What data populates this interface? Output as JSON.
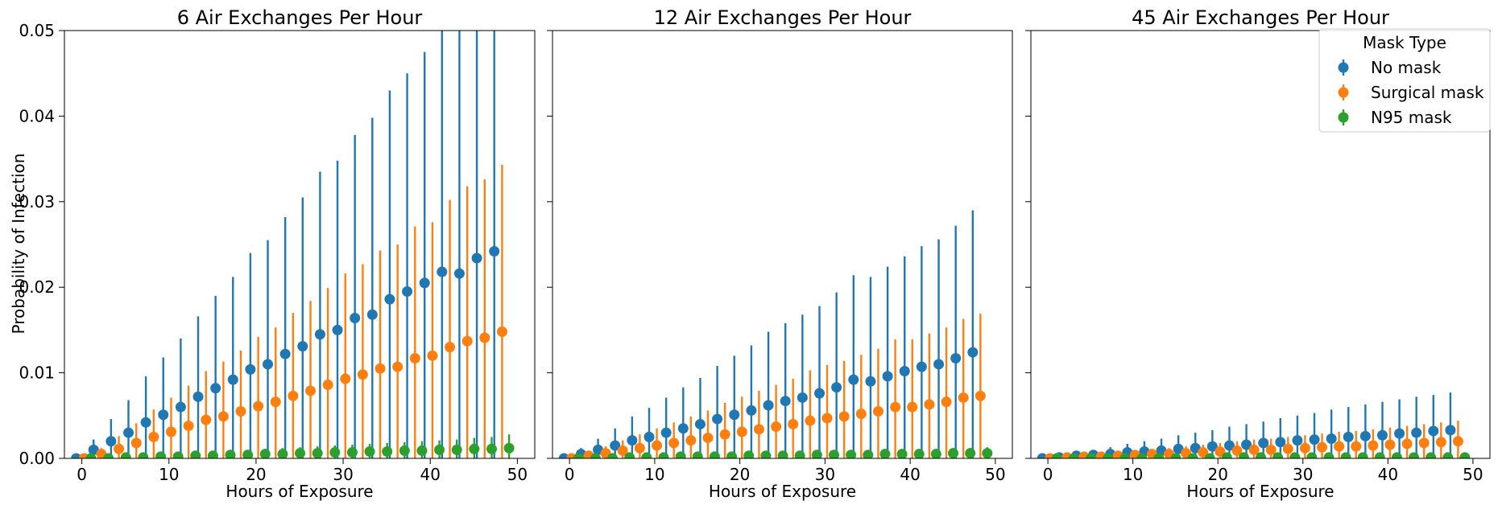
{
  "figure": {
    "ylabel": "Probability of Infection",
    "legend_title": "Mask Type"
  },
  "colors": {
    "No mask": "#1f77b4",
    "Surgical mask": "#ff7f0e",
    "N95 mask": "#2ca02c"
  },
  "chart_data": [
    {
      "type": "scatter",
      "title": "6 Air Exchanges Per Hour",
      "xlabel": "Hours of Exposure",
      "ylabel": "Probability of Infection",
      "xlim": [
        -2,
        52
      ],
      "ylim": [
        0,
        0.05
      ],
      "xticks": [
        "0",
        "10",
        "20",
        "30",
        "40",
        "50"
      ],
      "yticks": [
        "0.00",
        "0.01",
        "0.02",
        "0.03",
        "0.04",
        "0.05"
      ],
      "hours": [
        0,
        2,
        4,
        6,
        8,
        10,
        12,
        14,
        16,
        18,
        20,
        22,
        24,
        26,
        28,
        30,
        32,
        34,
        36,
        38,
        40,
        42,
        44,
        46,
        48
      ],
      "series": [
        {
          "name": "No mask",
          "offset": -0.65,
          "values": [
            0,
            0.001,
            0.002,
            0.003,
            0.0042,
            0.0051,
            0.006,
            0.0072,
            0.0082,
            0.0092,
            0.0104,
            0.011,
            0.0122,
            0.0131,
            0.0145,
            0.015,
            0.0164,
            0.0168,
            0.0186,
            0.0195,
            0.0205,
            0.0218,
            0.0216,
            0.0234,
            0.0242
          ],
          "upper": [
            0,
            0.0022,
            0.0046,
            0.0068,
            0.0096,
            0.0118,
            0.014,
            0.0166,
            0.019,
            0.0212,
            0.024,
            0.0255,
            0.0282,
            0.0305,
            0.0335,
            0.0348,
            0.0378,
            0.0398,
            0.043,
            0.045,
            0.0475,
            0.05,
            0.05,
            0.05,
            0.05
          ]
        },
        {
          "name": "Surgical mask",
          "offset": 0.25,
          "values": [
            0,
            0.0005,
            0.0011,
            0.0018,
            0.0025,
            0.0031,
            0.0038,
            0.0045,
            0.0049,
            0.0055,
            0.0061,
            0.0066,
            0.0073,
            0.0079,
            0.0086,
            0.0093,
            0.0098,
            0.0105,
            0.0107,
            0.0117,
            0.012,
            0.013,
            0.0137,
            0.0141,
            0.0148
          ],
          "upper": [
            0,
            0.0012,
            0.0026,
            0.0041,
            0.0057,
            0.0071,
            0.0085,
            0.0102,
            0.0113,
            0.0126,
            0.0142,
            0.0153,
            0.017,
            0.0184,
            0.0199,
            0.0216,
            0.0227,
            0.0243,
            0.025,
            0.0271,
            0.0276,
            0.0302,
            0.0318,
            0.0326,
            0.0343
          ]
        },
        {
          "name": "N95 mask",
          "offset": 1.05,
          "values": [
            0,
            0,
            0.0001,
            0.0001,
            0.0002,
            0.0002,
            0.0003,
            0.0003,
            0.0004,
            0.0004,
            0.0005,
            0.0005,
            0.0006,
            0.0006,
            0.0007,
            0.0007,
            0.0008,
            0.0008,
            0.0009,
            0.0009,
            0.001,
            0.001,
            0.0011,
            0.0011,
            0.0012
          ],
          "upper": [
            0,
            0.0001,
            0.0002,
            0.0003,
            0.0004,
            0.0005,
            0.0006,
            0.0007,
            0.0008,
            0.0009,
            0.0011,
            0.0012,
            0.0013,
            0.0014,
            0.0015,
            0.0016,
            0.0017,
            0.0018,
            0.0019,
            0.002,
            0.0021,
            0.0022,
            0.0024,
            0.0025,
            0.0028
          ]
        }
      ]
    },
    {
      "type": "scatter",
      "title": "12 Air Exchanges Per Hour",
      "xlabel": "Hours of Exposure",
      "xlim": [
        -2,
        52
      ],
      "ylim": [
        0,
        0.05
      ],
      "xticks": [
        "0",
        "10",
        "20",
        "30",
        "40",
        "50"
      ],
      "hours": [
        0,
        2,
        4,
        6,
        8,
        10,
        12,
        14,
        16,
        18,
        20,
        22,
        24,
        26,
        28,
        30,
        32,
        34,
        36,
        38,
        40,
        42,
        44,
        46,
        48
      ],
      "series": [
        {
          "name": "No mask",
          "offset": -0.65,
          "values": [
            0,
            0.0005,
            0.001,
            0.0015,
            0.0021,
            0.0025,
            0.003,
            0.0035,
            0.004,
            0.0046,
            0.0051,
            0.0056,
            0.0062,
            0.0067,
            0.0071,
            0.0076,
            0.0083,
            0.0092,
            0.009,
            0.0096,
            0.0102,
            0.0107,
            0.011,
            0.0117,
            0.0124
          ],
          "upper": [
            0,
            0.0012,
            0.0023,
            0.0035,
            0.0049,
            0.0059,
            0.0071,
            0.0083,
            0.0094,
            0.0108,
            0.012,
            0.0132,
            0.0148,
            0.0158,
            0.0168,
            0.0178,
            0.0194,
            0.0214,
            0.0212,
            0.0224,
            0.0236,
            0.0248,
            0.0256,
            0.0272,
            0.029
          ]
        },
        {
          "name": "Surgical mask",
          "offset": 0.25,
          "values": [
            0,
            0.0003,
            0.0006,
            0.0009,
            0.0012,
            0.0015,
            0.0018,
            0.0021,
            0.0024,
            0.0028,
            0.0031,
            0.0034,
            0.0037,
            0.004,
            0.0044,
            0.0047,
            0.0049,
            0.0052,
            0.0055,
            0.006,
            0.006,
            0.0063,
            0.0066,
            0.0071,
            0.0073
          ],
          "upper": [
            0,
            0.0007,
            0.0014,
            0.0021,
            0.0028,
            0.0035,
            0.0042,
            0.0049,
            0.0056,
            0.0065,
            0.0072,
            0.0079,
            0.0086,
            0.0093,
            0.0103,
            0.0109,
            0.0114,
            0.0121,
            0.0128,
            0.0139,
            0.0139,
            0.0146,
            0.0153,
            0.0163,
            0.0169
          ]
        },
        {
          "name": "N95 mask",
          "offset": 1.05,
          "values": [
            0,
            0,
            0,
            0.0001,
            0.0001,
            0.0001,
            0.0002,
            0.0002,
            0.0002,
            0.0002,
            0.0003,
            0.0003,
            0.0003,
            0.0003,
            0.0004,
            0.0004,
            0.0004,
            0.0004,
            0.0005,
            0.0005,
            0.0005,
            0.0005,
            0.0006,
            0.0006,
            0.0006
          ],
          "upper": [
            0,
            0.0001,
            0.0001,
            0.0002,
            0.0002,
            0.0003,
            0.0004,
            0.0004,
            0.0005,
            0.0005,
            0.0006,
            0.0006,
            0.0007,
            0.0007,
            0.0008,
            0.0008,
            0.0009,
            0.0009,
            0.001,
            0.001,
            0.0011,
            0.0011,
            0.0012,
            0.0012,
            0.0013
          ]
        }
      ]
    },
    {
      "type": "scatter",
      "title": "45 Air Exchanges Per Hour",
      "xlabel": "Hours of Exposure",
      "xlim": [
        -2,
        52
      ],
      "ylim": [
        0,
        0.05
      ],
      "xticks": [
        "0",
        "10",
        "20",
        "30",
        "40",
        "50"
      ],
      "legend": {
        "title": "Mask Type",
        "loc": "upper right",
        "entries": [
          "No mask",
          "Surgical mask",
          "N95 mask"
        ]
      },
      "hours": [
        0,
        2,
        4,
        6,
        8,
        10,
        12,
        14,
        16,
        18,
        20,
        22,
        24,
        26,
        28,
        30,
        32,
        34,
        36,
        38,
        40,
        42,
        44,
        46,
        48
      ],
      "series": [
        {
          "name": "No mask",
          "offset": -0.65,
          "values": [
            0,
            0.0001,
            0.0003,
            0.0004,
            0.0005,
            0.0007,
            0.0008,
            0.0009,
            0.0011,
            0.0012,
            0.0014,
            0.0015,
            0.0016,
            0.0018,
            0.0019,
            0.0021,
            0.0022,
            0.0023,
            0.0025,
            0.0026,
            0.0027,
            0.0029,
            0.003,
            0.0032,
            0.0033
          ],
          "upper": [
            0,
            0.0003,
            0.0007,
            0.001,
            0.0013,
            0.0017,
            0.002,
            0.0023,
            0.0027,
            0.003,
            0.0033,
            0.0037,
            0.004,
            0.0043,
            0.0047,
            0.005,
            0.0053,
            0.0057,
            0.006,
            0.0063,
            0.0066,
            0.0069,
            0.0072,
            0.0074,
            0.0077
          ]
        },
        {
          "name": "Surgical mask",
          "offset": 0.25,
          "values": [
            0,
            0.0001,
            0.0002,
            0.0002,
            0.0003,
            0.0004,
            0.0005,
            0.0005,
            0.0006,
            0.0007,
            0.0008,
            0.0009,
            0.001,
            0.001,
            0.0011,
            0.0012,
            0.0013,
            0.0014,
            0.0014,
            0.0015,
            0.0016,
            0.0017,
            0.0018,
            0.0019,
            0.002
          ],
          "upper": [
            0,
            0.0002,
            0.0004,
            0.0005,
            0.0007,
            0.0009,
            0.0011,
            0.0012,
            0.0014,
            0.0016,
            0.0018,
            0.002,
            0.0022,
            0.0023,
            0.0025,
            0.0027,
            0.0029,
            0.0031,
            0.0032,
            0.0034,
            0.0036,
            0.0038,
            0.004,
            0.0042,
            0.0044
          ]
        },
        {
          "name": "N95 mask",
          "offset": 1.05,
          "values": [
            0,
            0,
            0,
            0,
            0,
            0,
            0,
            0,
            0,
            0,
            0.0001,
            0.0001,
            0.0001,
            0.0001,
            0.0001,
            0.0001,
            0.0001,
            0.0001,
            0.0001,
            0.0001,
            0.0001,
            0.0001,
            0.0001,
            0.0001,
            0.0001
          ],
          "upper": [
            0,
            0,
            0,
            0,
            0.0001,
            0.0001,
            0.0001,
            0.0001,
            0.0001,
            0.0001,
            0.0001,
            0.0001,
            0.0001,
            0.0001,
            0.0002,
            0.0002,
            0.0002,
            0.0002,
            0.0002,
            0.0002,
            0.0002,
            0.0002,
            0.0002,
            0.0003,
            0.0003
          ]
        }
      ]
    }
  ]
}
